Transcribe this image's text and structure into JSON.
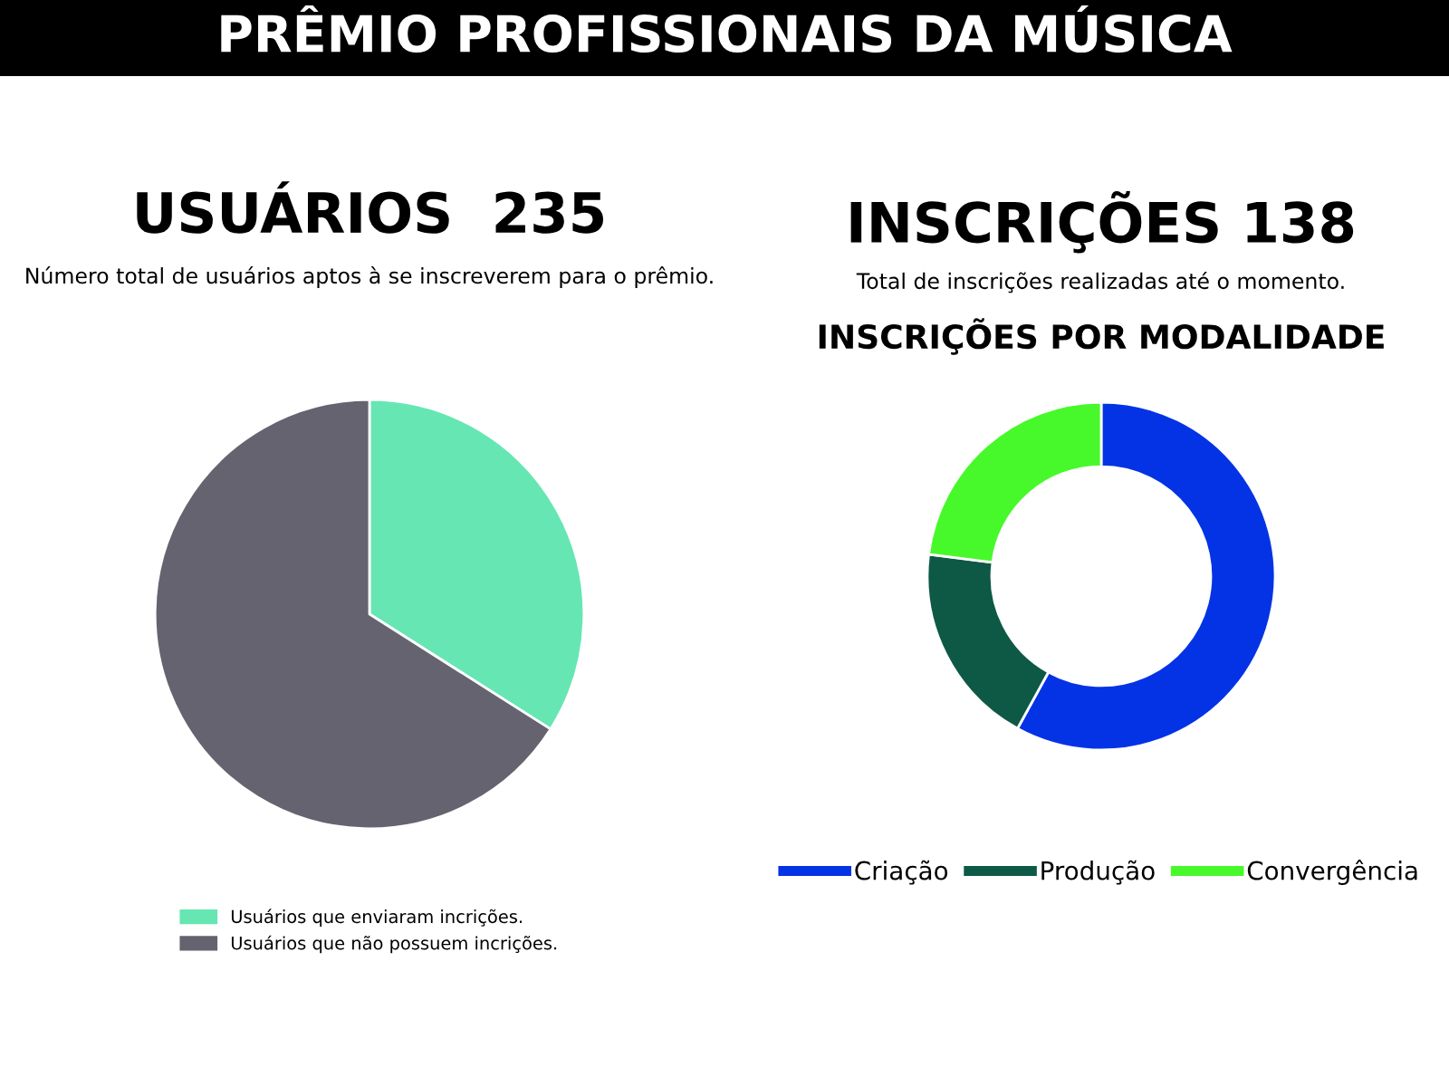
{
  "chart_data": [
    {
      "type": "other",
      "title": "PRÊMIO PROFISSIONAIS DA MÚSICA"
    },
    {
      "type": "pie",
      "title": "USUÁRIOS  235",
      "subtitle": "Número total de usuários aptos à se inscreverem para o prêmio.",
      "categories": [
        "Usuários que enviaram incrições.",
        "Usuários que não possuem incrições."
      ],
      "values": [
        34,
        66
      ],
      "colors": [
        "#66e6b3",
        "#65636f"
      ],
      "legend": "bottom"
    },
    {
      "type": "donut",
      "title": "INSCRIÇÕES 138",
      "subtitle": "Total de inscrições realizadas até o momento.",
      "annotations": [
        "INSCRIÇÕES POR MODALIDADE"
      ],
      "categories": [
        "Criação",
        "Produção",
        "Convergência"
      ],
      "values": [
        58,
        19,
        23
      ],
      "colors": [
        "#0433e6",
        "#0e5946",
        "#47f92a"
      ],
      "legend": "bottom"
    }
  ]
}
